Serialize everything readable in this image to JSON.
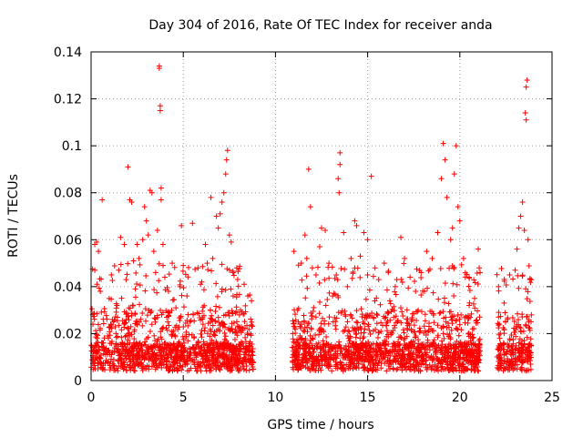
{
  "chart_data": {
    "type": "scatter",
    "title": "Day 304 of 2016, Rate Of TEC Index for receiver anda",
    "xlabel": "GPS time / hours",
    "ylabel": "ROTI / TECUs",
    "xlim": [
      0,
      25
    ],
    "ylim": [
      0,
      0.14
    ],
    "xticks": [
      0,
      5,
      10,
      15,
      20,
      25
    ],
    "xtick_labels": [
      "0",
      "5",
      "10",
      "15",
      "20",
      "25"
    ],
    "yticks": [
      0,
      0.02,
      0.04,
      0.06,
      0.08,
      0.1,
      0.12,
      0.14
    ],
    "ytick_labels": [
      "0",
      "0.02",
      "0.04",
      "0.06",
      "0.08",
      "0.1",
      "0.12",
      "0.14"
    ],
    "grid": true,
    "marker": "+",
    "color": "#ff0000",
    "data_coverage_hours": [
      [
        0,
        8.8
      ],
      [
        10.9,
        21.1
      ],
      [
        22.0,
        23.9
      ]
    ],
    "series": [
      {
        "name": "ROTI",
        "points": [
          [
            0.1,
            0.024
          ],
          [
            0.2,
            0.047
          ],
          [
            0.2,
            0.058
          ],
          [
            0.3,
            0.059
          ],
          [
            0.4,
            0.055
          ],
          [
            0.5,
            0.038
          ],
          [
            0.6,
            0.077
          ],
          [
            0.7,
            0.014
          ],
          [
            0.9,
            0.019
          ],
          [
            1.0,
            0.012
          ],
          [
            1.1,
            0.045
          ],
          [
            1.2,
            0.025
          ],
          [
            1.4,
            0.032
          ],
          [
            1.5,
            0.047
          ],
          [
            1.6,
            0.061
          ],
          [
            1.8,
            0.058
          ],
          [
            1.9,
            0.043
          ],
          [
            2.0,
            0.091
          ],
          [
            2.1,
            0.077
          ],
          [
            2.2,
            0.076
          ],
          [
            2.3,
            0.051
          ],
          [
            2.4,
            0.039
          ],
          [
            2.5,
            0.058
          ],
          [
            2.6,
            0.052
          ],
          [
            2.8,
            0.06
          ],
          [
            2.9,
            0.074
          ],
          [
            3.0,
            0.068
          ],
          [
            3.1,
            0.062
          ],
          [
            3.2,
            0.081
          ],
          [
            3.3,
            0.08
          ],
          [
            3.4,
            0.055
          ],
          [
            3.5,
            0.046
          ],
          [
            3.6,
            0.064
          ],
          [
            3.7,
            0.134
          ],
          [
            3.7,
            0.133
          ],
          [
            3.75,
            0.117
          ],
          [
            3.75,
            0.115
          ],
          [
            3.8,
            0.082
          ],
          [
            3.8,
            0.077
          ],
          [
            3.9,
            0.058
          ],
          [
            4.0,
            0.044
          ],
          [
            4.2,
            0.038
          ],
          [
            4.4,
            0.05
          ],
          [
            4.6,
            0.031
          ],
          [
            4.9,
            0.066
          ],
          [
            5.0,
            0.049
          ],
          [
            5.2,
            0.036
          ],
          [
            5.5,
            0.067
          ],
          [
            5.8,
            0.048
          ],
          [
            6.0,
            0.042
          ],
          [
            6.2,
            0.058
          ],
          [
            6.3,
            0.05
          ],
          [
            6.5,
            0.078
          ],
          [
            6.6,
            0.052
          ],
          [
            6.8,
            0.07
          ],
          [
            6.9,
            0.065
          ],
          [
            7.0,
            0.071
          ],
          [
            7.1,
            0.076
          ],
          [
            7.2,
            0.08
          ],
          [
            7.3,
            0.088
          ],
          [
            7.35,
            0.094
          ],
          [
            7.4,
            0.098
          ],
          [
            7.5,
            0.062
          ],
          [
            7.6,
            0.059
          ],
          [
            7.7,
            0.046
          ],
          [
            7.9,
            0.048
          ],
          [
            8.1,
            0.03
          ],
          [
            8.3,
            0.041
          ],
          [
            8.5,
            0.036
          ],
          [
            8.7,
            0.034
          ],
          [
            11.0,
            0.055
          ],
          [
            11.2,
            0.03
          ],
          [
            11.4,
            0.05
          ],
          [
            11.6,
            0.062
          ],
          [
            11.7,
            0.052
          ],
          [
            11.8,
            0.09
          ],
          [
            11.9,
            0.074
          ],
          [
            12.0,
            0.048
          ],
          [
            12.2,
            0.045
          ],
          [
            12.4,
            0.057
          ],
          [
            12.5,
            0.065
          ],
          [
            12.7,
            0.064
          ],
          [
            12.9,
            0.05
          ],
          [
            13.1,
            0.036
          ],
          [
            13.3,
            0.045
          ],
          [
            13.4,
            0.086
          ],
          [
            13.45,
            0.08
          ],
          [
            13.5,
            0.097
          ],
          [
            13.5,
            0.092
          ],
          [
            13.7,
            0.063
          ],
          [
            13.9,
            0.04
          ],
          [
            14.1,
            0.052
          ],
          [
            14.3,
            0.068
          ],
          [
            14.4,
            0.066
          ],
          [
            14.6,
            0.053
          ],
          [
            14.8,
            0.063
          ],
          [
            15.0,
            0.06
          ],
          [
            15.2,
            0.087
          ],
          [
            15.4,
            0.048
          ],
          [
            15.6,
            0.043
          ],
          [
            15.9,
            0.05
          ],
          [
            16.2,
            0.034
          ],
          [
            16.5,
            0.04
          ],
          [
            16.8,
            0.061
          ],
          [
            17.0,
            0.052
          ],
          [
            17.3,
            0.044
          ],
          [
            17.6,
            0.038
          ],
          [
            17.9,
            0.046
          ],
          [
            18.2,
            0.055
          ],
          [
            18.5,
            0.052
          ],
          [
            18.8,
            0.063
          ],
          [
            19.0,
            0.086
          ],
          [
            19.1,
            0.101
          ],
          [
            19.2,
            0.094
          ],
          [
            19.3,
            0.078
          ],
          [
            19.5,
            0.06
          ],
          [
            19.6,
            0.065
          ],
          [
            19.7,
            0.088
          ],
          [
            19.8,
            0.1
          ],
          [
            19.9,
            0.074
          ],
          [
            20.0,
            0.068
          ],
          [
            20.2,
            0.052
          ],
          [
            20.5,
            0.044
          ],
          [
            20.8,
            0.035
          ],
          [
            21.0,
            0.056
          ],
          [
            21.05,
            0.048
          ],
          [
            21.1,
            0.046
          ],
          [
            22.1,
            0.04
          ],
          [
            22.4,
            0.033
          ],
          [
            22.7,
            0.045
          ],
          [
            23.0,
            0.047
          ],
          [
            23.1,
            0.056
          ],
          [
            23.2,
            0.065
          ],
          [
            23.3,
            0.07
          ],
          [
            23.4,
            0.076
          ],
          [
            23.5,
            0.064
          ],
          [
            23.55,
            0.114
          ],
          [
            23.6,
            0.111
          ],
          [
            23.6,
            0.125
          ],
          [
            23.65,
            0.128
          ],
          [
            23.7,
            0.06
          ],
          [
            23.8,
            0.043
          ]
        ]
      }
    ]
  }
}
